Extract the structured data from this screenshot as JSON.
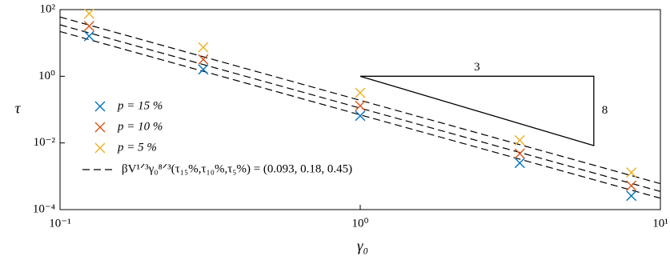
{
  "chart_data": {
    "type": "scatter",
    "xlabel": "γ₀",
    "ylabel": "τ",
    "log_x": true,
    "log_y": true,
    "xlim": [
      0.1,
      10
    ],
    "ylim": [
      0.0001,
      100
    ],
    "xticks": [
      {
        "value": 0.1,
        "label": "10⁻¹"
      },
      {
        "value": 1,
        "label": "10⁰"
      },
      {
        "value": 10,
        "label": "10¹"
      }
    ],
    "yticks": [
      {
        "value": 0.0001,
        "label": "10⁻⁴"
      },
      {
        "value": 0.01,
        "label": "10⁻²"
      },
      {
        "value": 1,
        "label": "10⁰"
      },
      {
        "value": 100,
        "label": "10²"
      }
    ],
    "x": [
      0.125,
      0.3,
      1,
      3.4,
      8
    ],
    "series": [
      {
        "name": "p = 15 %",
        "color": "#0072bd",
        "values": [
          16,
          1.6,
          0.065,
          0.0025,
          0.00026
        ]
      },
      {
        "name": "p = 10 %",
        "color": "#d95319",
        "values": [
          32,
          3.2,
          0.13,
          0.0048,
          0.00052
        ]
      },
      {
        "name": "p = 5 %",
        "color": "#edb120",
        "values": [
          76,
          7.4,
          0.32,
          0.012,
          0.0013
        ]
      }
    ],
    "fit": {
      "label": "βV¹ᐟ³γ₀⁸ᐟ³(τ₁₅%,τ₁₀%,τ₅%) = (0.093, 0.18, 0.45)",
      "color": "#000000",
      "x": [
        0.1,
        10
      ],
      "lines": [
        [
          22,
          0.00022
        ],
        [
          35,
          0.00035
        ],
        [
          60,
          0.0006
        ]
      ]
    },
    "slope_triangle": {
      "x": [
        1,
        6,
        6
      ],
      "y": [
        1,
        1,
        0.0083
      ],
      "run_label": "3",
      "rise_label": "8"
    }
  }
}
